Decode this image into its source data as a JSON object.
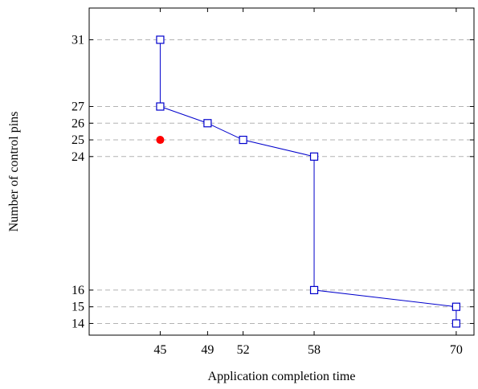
{
  "chart_data": {
    "type": "line",
    "xlabel": "Application completion time",
    "ylabel": "Number of control pins",
    "xlim": [
      39,
      71.5
    ],
    "ylim": [
      13.3,
      32.9
    ],
    "xticks": [
      45,
      49,
      52,
      58,
      70
    ],
    "yticks": [
      14,
      15,
      16,
      24,
      25,
      26,
      27,
      31
    ],
    "grid": "horizontal-dashed-at-yticks",
    "series": [
      {
        "marker": "open-square",
        "color": "#0000cc",
        "points": [
          {
            "x": 45,
            "y": 31
          },
          {
            "x": 45,
            "y": 27
          },
          {
            "x": 49,
            "y": 26
          },
          {
            "x": 52,
            "y": 25
          },
          {
            "x": 58,
            "y": 24
          },
          {
            "x": 58,
            "y": 16
          },
          {
            "x": 70,
            "y": 15
          },
          {
            "x": 70,
            "y": 14
          }
        ]
      },
      {
        "marker": "filled-circle",
        "color": "#ff0000",
        "points": [
          {
            "x": 45,
            "y": 25
          }
        ]
      }
    ]
  }
}
